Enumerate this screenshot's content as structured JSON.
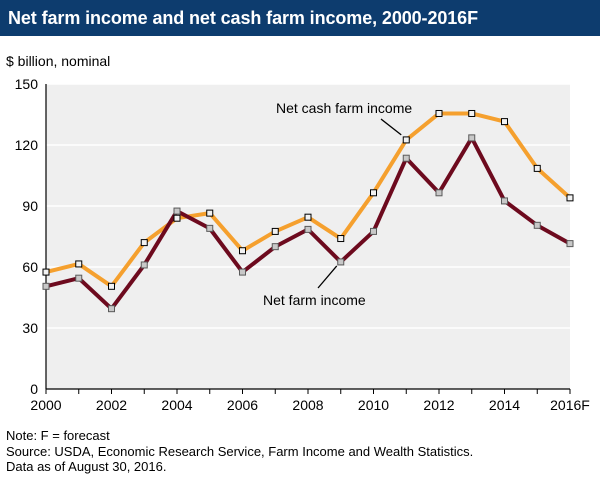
{
  "header": {
    "title": "Net farm income and net cash farm income, 2000-2016F"
  },
  "notes": {
    "note": "Note: F = forecast",
    "source": "Source: USDA, Economic Research Service, Farm Income and Wealth Statistics.",
    "data_as_of": "Data as of August 30, 2016."
  },
  "colors": {
    "title_background": "#0d3c6e",
    "plot_background": "#efefef",
    "net_cash_farm_income_line": "#f5a02e",
    "net_farm_income_line": "#6d0a1e"
  },
  "chart_data": {
    "type": "line",
    "title": "Net farm income and net cash farm income, 2000-2016F",
    "ylabel": "$ billion, nominal",
    "xlabel": "",
    "ylim": [
      0,
      150
    ],
    "yticks": [
      0,
      30,
      60,
      90,
      120,
      150
    ],
    "xlim": [
      2000,
      2016
    ],
    "x": [
      2000,
      2001,
      2002,
      2003,
      2004,
      2005,
      2006,
      2007,
      2008,
      2009,
      2010,
      2011,
      2012,
      2013,
      2014,
      2015,
      2016
    ],
    "xticks": [
      {
        "value": 2000,
        "label": "2000"
      },
      {
        "value": 2002,
        "label": "2002"
      },
      {
        "value": 2004,
        "label": "2004"
      },
      {
        "value": 2006,
        "label": "2006"
      },
      {
        "value": 2008,
        "label": "2008"
      },
      {
        "value": 2010,
        "label": "2010"
      },
      {
        "value": 2012,
        "label": "2012"
      },
      {
        "value": 2014,
        "label": "2014"
      },
      {
        "value": 2016,
        "label": "2016F"
      }
    ],
    "grid": "horizontal",
    "series": [
      {
        "name": "Net cash farm income",
        "color": "#f5a02e",
        "values": [
          57.5,
          61.5,
          50.5,
          72.0,
          84.0,
          86.5,
          68.0,
          77.5,
          84.5,
          74.0,
          96.5,
          122.5,
          135.5,
          135.5,
          131.5,
          108.5,
          94.0
        ]
      },
      {
        "name": "Net farm income",
        "color": "#6d0a1e",
        "values": [
          50.5,
          54.5,
          39.5,
          61.0,
          87.5,
          79.0,
          57.5,
          70.0,
          78.5,
          62.5,
          77.5,
          113.5,
          96.5,
          123.5,
          92.5,
          80.5,
          71.5
        ]
      }
    ],
    "annotations": [
      {
        "text": "Net cash farm income",
        "series": "Net cash farm income"
      },
      {
        "text": "Net farm income",
        "series": "Net farm income"
      }
    ]
  }
}
